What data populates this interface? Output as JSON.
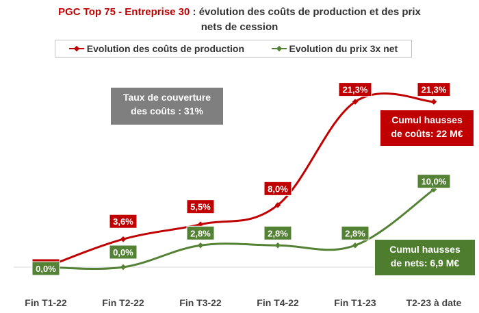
{
  "title": {
    "brand": "PGC Top 75 - Entreprise 30",
    "rest": " : évolution des coûts de production et des prix",
    "line2": "nets de cession"
  },
  "legend": {
    "production_label": "Evolution des coûts de production",
    "price_label": "Evolution du prix 3x net"
  },
  "annotations": {
    "coverage": {
      "line1": "Taux de couverture",
      "line2": "des coûts : 31%"
    },
    "costs": {
      "line1": "Cumul hausses",
      "line2": "de coûts: 22 M€"
    },
    "nets": {
      "line1": "Cumul hausses",
      "line2": "de nets: 6,9 M€"
    }
  },
  "colors": {
    "production": "#c00000",
    "price": "#548235"
  },
  "chart_data": {
    "type": "line",
    "categories": [
      "Fin T1-22",
      "Fin T2-22",
      "Fin T3-22",
      "Fin T4-22",
      "Fin T1-23",
      "T2-23 à date"
    ],
    "series": [
      {
        "name": "Evolution des coûts de production",
        "values": [
          0.0,
          3.6,
          5.5,
          8.0,
          21.3,
          21.3
        ],
        "labels": [
          "0,0%",
          "3,6%",
          "5,5%",
          "8,0%",
          "21,3%",
          "21,3%"
        ]
      },
      {
        "name": "Evolution du prix 3x net",
        "values": [
          0.0,
          0.0,
          2.8,
          2.8,
          2.8,
          10.0
        ],
        "labels": [
          "0,0%",
          "0,0%",
          "2,8%",
          "2,8%",
          "2,8%",
          "10,0%"
        ]
      }
    ],
    "ylim": [
      0,
      22.5
    ],
    "grid": false,
    "legend_position": "top"
  }
}
